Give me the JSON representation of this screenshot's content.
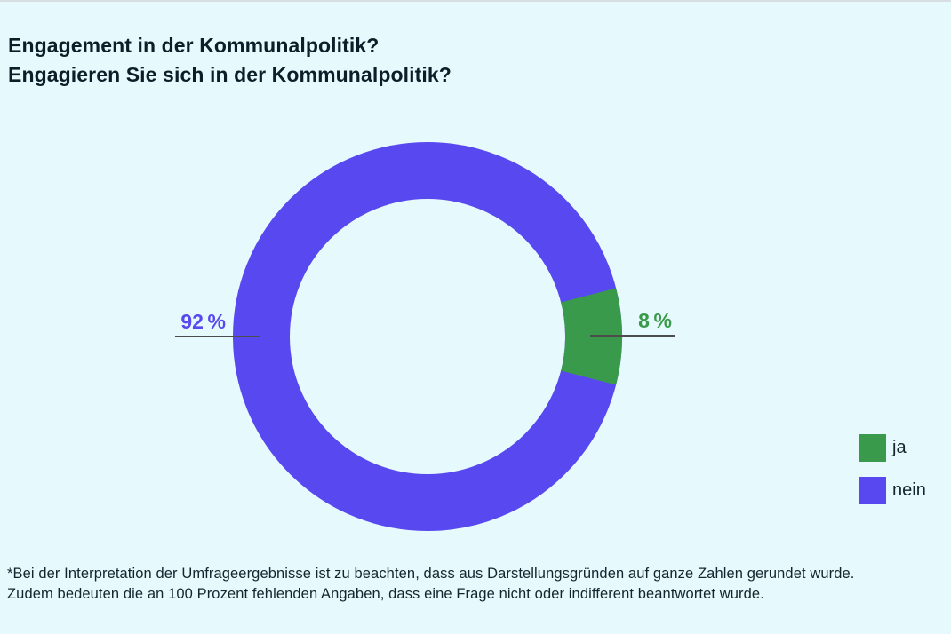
{
  "header": {
    "title": "Engagement in der Kommunalpolitik?",
    "subtitle": "Engagieren Sie sich in der Kommunalpolitik?"
  },
  "chart_data": {
    "type": "pie",
    "donut": true,
    "title": "Engagement in der Kommunalpolitik?",
    "question": "Engagieren Sie sich in der Kommunalpolitik?",
    "categories": [
      "ja",
      "nein"
    ],
    "values": [
      8,
      92
    ],
    "unit": "%",
    "colors": [
      "#3a9a4b",
      "#5848f0"
    ],
    "data_labels": [
      "8 %",
      "92 %"
    ],
    "legend_position": "right"
  },
  "labels": {
    "ja_percent": "8 %",
    "nein_percent": "92 %"
  },
  "legend": {
    "items": [
      {
        "label": "ja",
        "color": "#3a9a4b"
      },
      {
        "label": "nein",
        "color": "#5848f0"
      }
    ]
  },
  "footnote": {
    "line1": "*Bei der Interpretation der Umfrageergebnisse ist zu beachten, dass aus Darstellungsgründen auf ganze Zahlen gerundet wurde.",
    "line2": "Zudem bedeuten die an 100 Prozent fehlenden Angaben, dass eine Frage nicht oder indifferent beantwortet wurde."
  },
  "style": {
    "background": "#e6f9fc",
    "title_color": "#0e1e29",
    "leader_line_color": "#4d4d4d",
    "top_divider_color": "#d7dde0"
  }
}
